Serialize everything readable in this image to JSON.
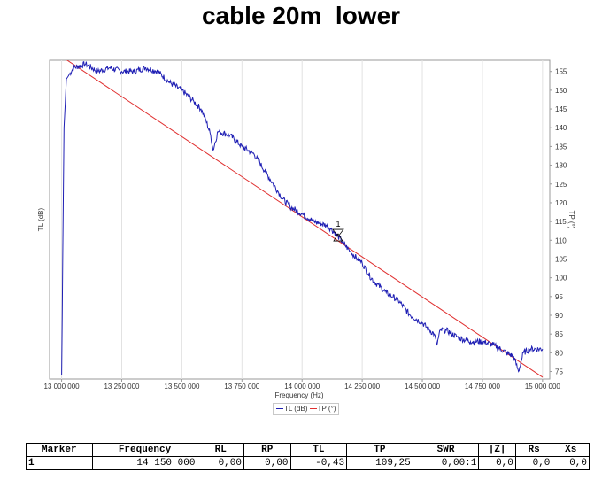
{
  "page_title": "cable 20m  lower",
  "chart_data": {
    "type": "line",
    "xlabel": "Frequency (Hz)",
    "ylabel_left": "TL (dB)",
    "ylabel_right": "TP (°)",
    "xlim": [
      12950000,
      15030000
    ],
    "ylim_right": [
      73,
      158
    ],
    "x_ticks": [
      13000000,
      13250000,
      13500000,
      13750000,
      14000000,
      14250000,
      14500000,
      14750000,
      15000000
    ],
    "x_tick_labels": [
      "13 000 000",
      "13 250 000",
      "13 500 000",
      "13 750 000",
      "14 000 000",
      "14 250 000",
      "14 500 000",
      "14 750 000",
      "15 000 000"
    ],
    "y_right_ticks": [
      75,
      80,
      85,
      90,
      95,
      100,
      105,
      110,
      115,
      120,
      125,
      130,
      135,
      140,
      145,
      150,
      155
    ],
    "grid": true,
    "legend": [
      "TL (dB)",
      "TP (°)"
    ],
    "series": [
      {
        "name": "TL (dB)",
        "color": "#1f1fb4",
        "x": [
          13000000,
          13010000,
          13020000,
          13050000,
          13100000,
          13150000,
          13200000,
          13250000,
          13300000,
          13350000,
          13400000,
          13450000,
          13500000,
          13550000,
          13580000,
          13600000,
          13620000,
          13630000,
          13650000,
          13700000,
          13750000,
          13800000,
          13850000,
          13880000,
          13900000,
          13920000,
          13950000,
          14000000,
          14050000,
          14100000,
          14120000,
          14150000,
          14175000,
          14200000,
          14230000,
          14250000,
          14275000,
          14300000,
          14350000,
          14400000,
          14450000,
          14500000,
          14530000,
          14550000,
          14560000,
          14575000,
          14600000,
          14650000,
          14700000,
          14750000,
          14800000,
          14850000,
          14880000,
          14900000,
          14920000,
          14950000,
          15000000
        ],
        "y": [
          74,
          140,
          153,
          156,
          157,
          155,
          156,
          155,
          155,
          156,
          155,
          152,
          150,
          147,
          145,
          142,
          138,
          134,
          139,
          138,
          135,
          133,
          128,
          125,
          123,
          121,
          119,
          117,
          115,
          114,
          113,
          111,
          109,
          107,
          105,
          104,
          101,
          99,
          96,
          94,
          90,
          88,
          86,
          85,
          82,
          86,
          86,
          84,
          83,
          83,
          82,
          80,
          79,
          75,
          80,
          81,
          81
        ]
      },
      {
        "name": "TP (°)",
        "color": "#e03030",
        "x": [
          13000000,
          15000000
        ],
        "y": [
          159,
          73.5
        ]
      }
    ],
    "markers": [
      {
        "label": "1",
        "x": 14150000,
        "y": 111
      }
    ]
  },
  "marker_table": {
    "headers": [
      "Marker",
      "Frequency",
      "RL",
      "RP",
      "TL",
      "TP",
      "SWR",
      "|Z|",
      "Rs",
      "Xs"
    ],
    "rows": [
      [
        "1",
        "14 150 000",
        "0,00",
        "0,00",
        "-0,43",
        "109,25",
        "0,00:1",
        "0,0",
        "0,0",
        "0,0"
      ]
    ]
  }
}
